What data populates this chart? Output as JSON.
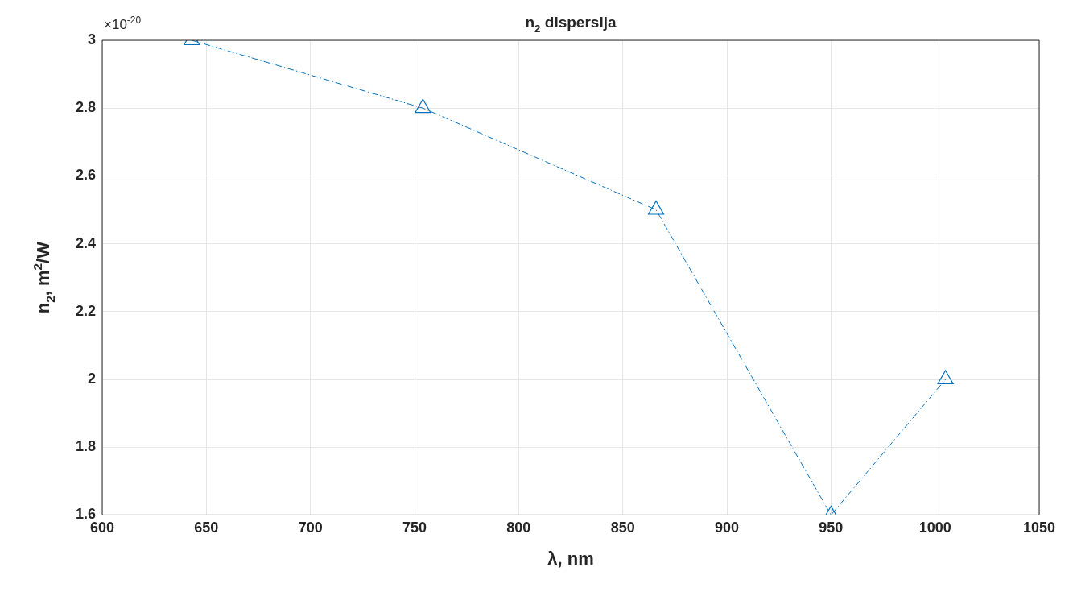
{
  "chart_data": {
    "type": "line",
    "title": "n$_{2}$ dispersija",
    "xlabel": "λ, nm",
    "ylabel": "n$_{2}$, m$^{2}$/W",
    "annotations": [
      "×10$^{-20}$"
    ],
    "x": [
      643,
      754,
      866,
      950,
      1005
    ],
    "series": [
      {
        "color": "#0072bd",
        "values": [
          3,
          2.8,
          2.5,
          1.6,
          2
        ]
      }
    ],
    "xlim": [
      600,
      1050
    ],
    "xticks": [
      600,
      650,
      700,
      750,
      800,
      850,
      900,
      950,
      1000,
      1050
    ],
    "ylim": [
      1.6,
      3
    ],
    "yticks": [
      1.6,
      1.8,
      2,
      2.2,
      2.4,
      2.6,
      2.8,
      3
    ],
    "grid": true,
    "legend": false,
    "marker": "triangle",
    "line_style": "dashed"
  }
}
